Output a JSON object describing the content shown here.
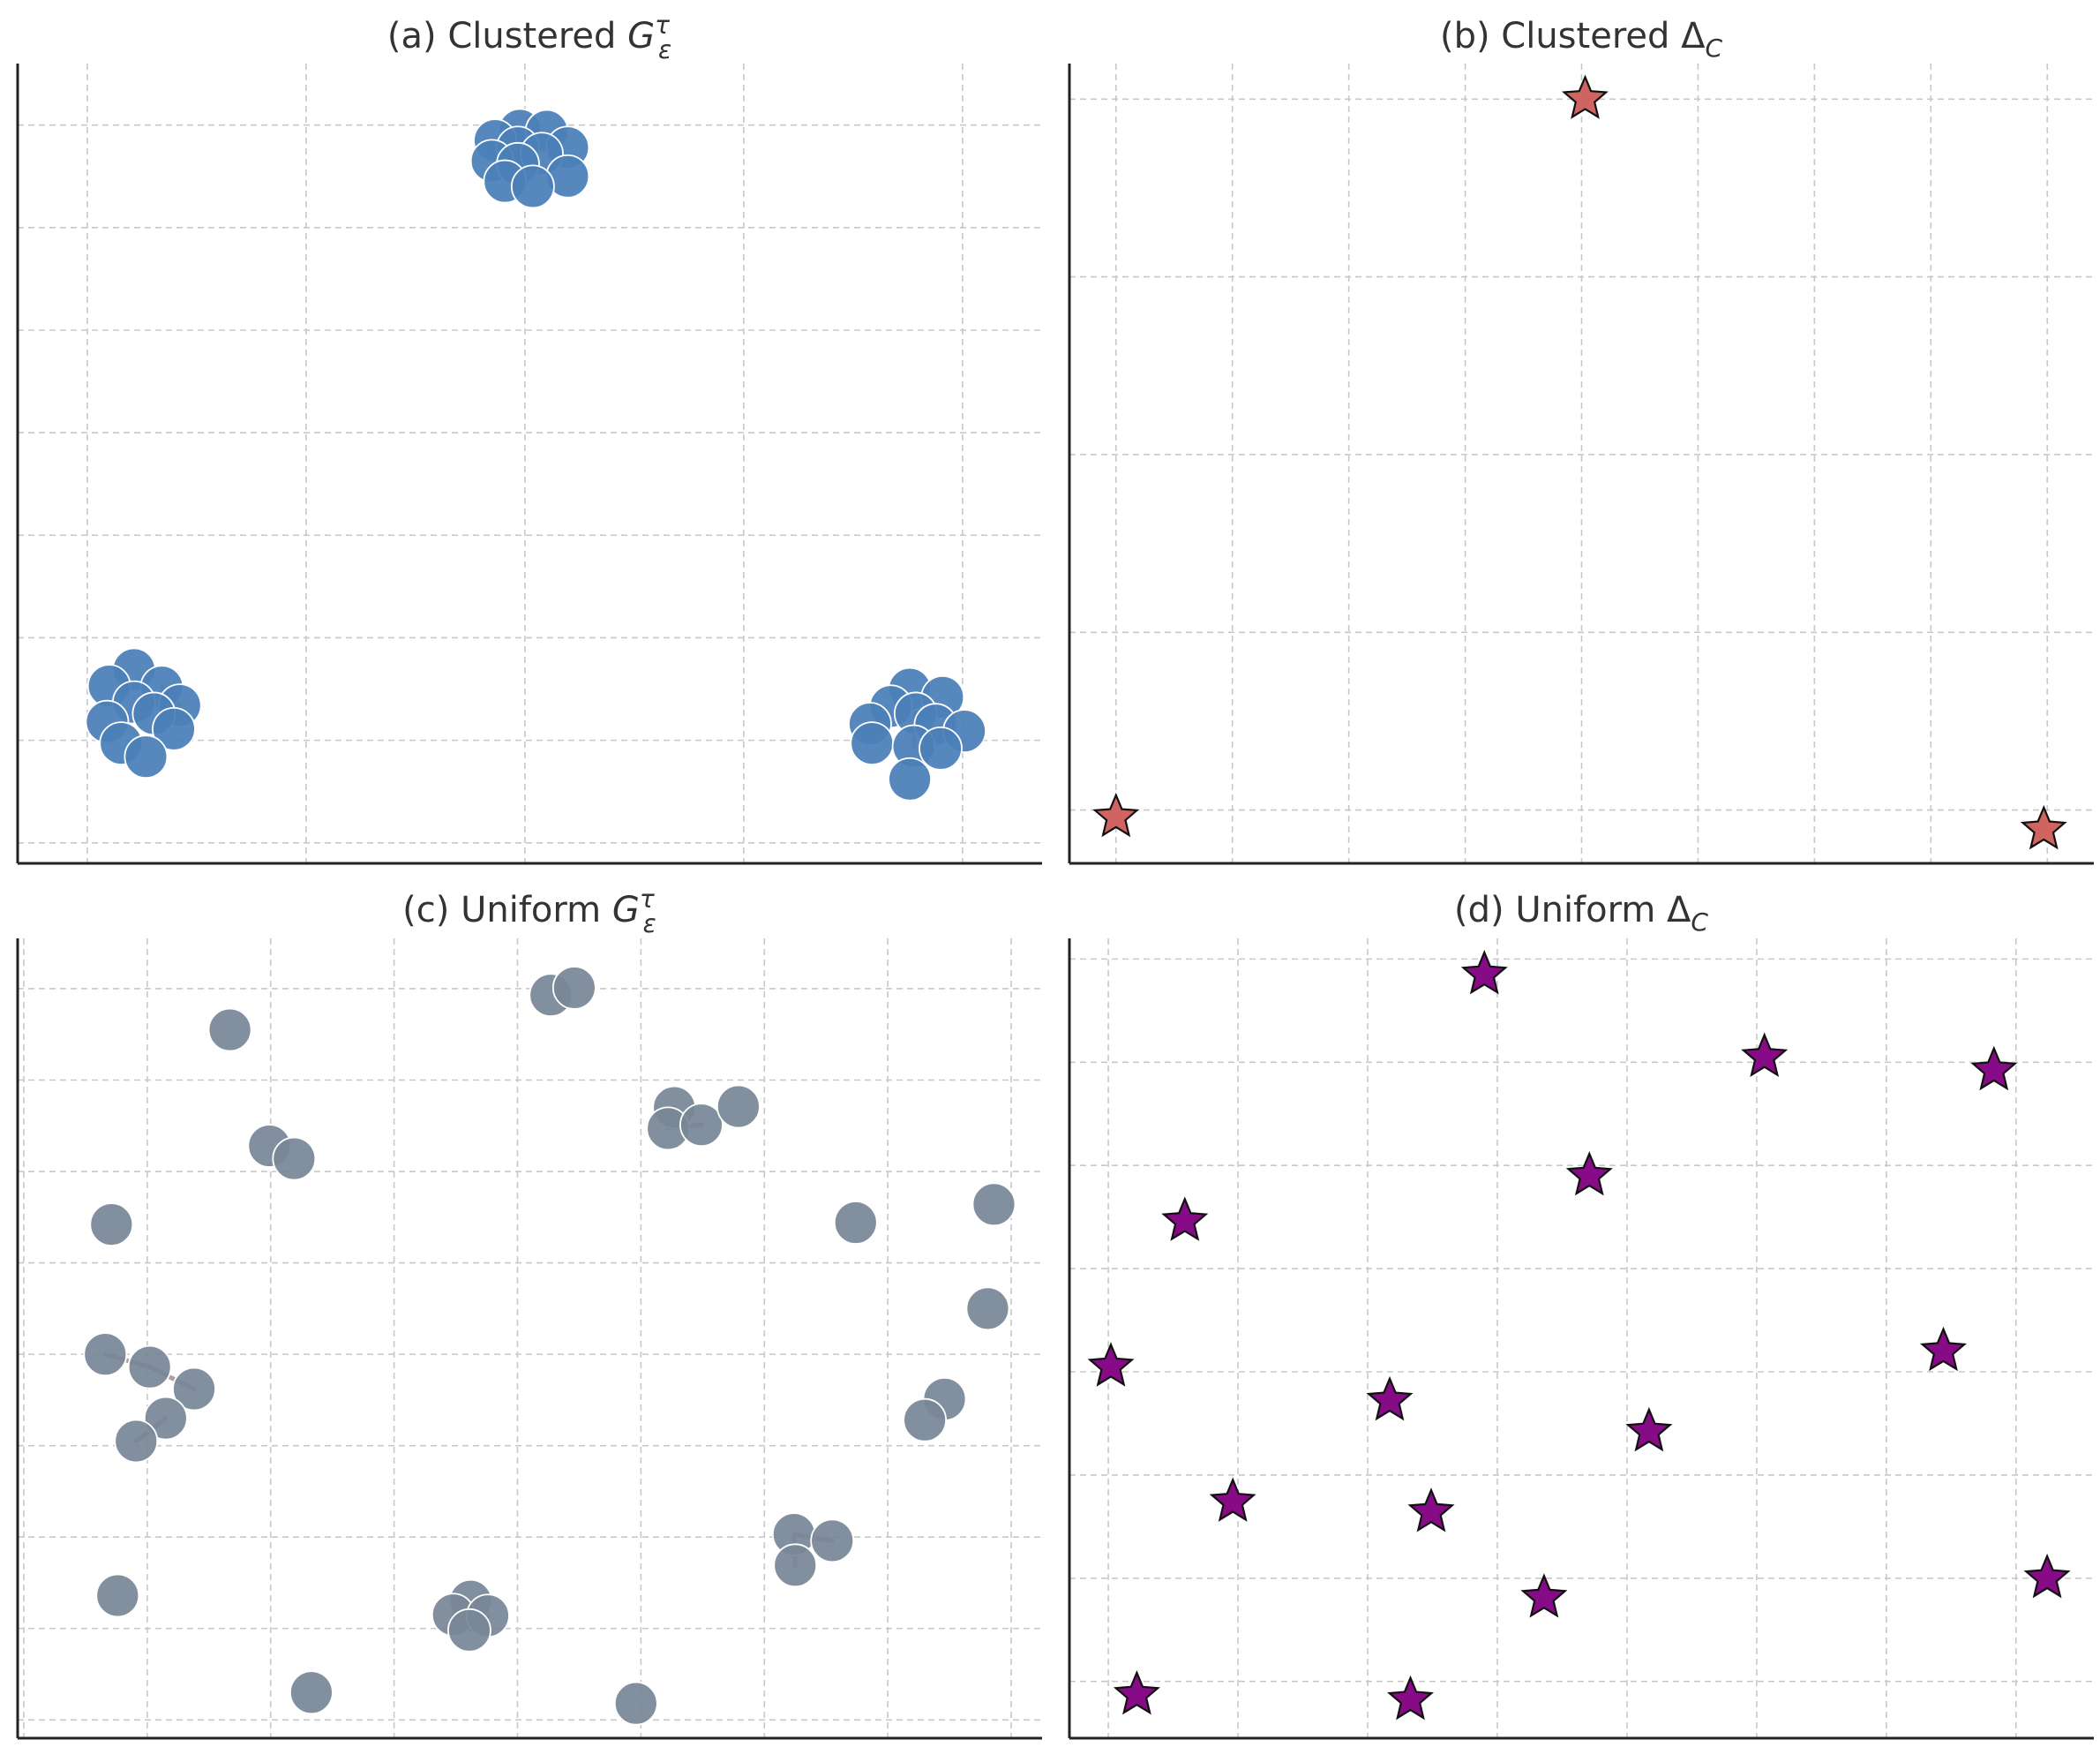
{
  "colors": {
    "clustered_nodes": "#4a7fb8",
    "uniform_nodes": "#798797",
    "clustered_stars": "#d06460",
    "uniform_stars": "#870a86",
    "edge": "#9e8e99",
    "grid": "#c8c8c8"
  },
  "chart_data": [
    {
      "id": "a",
      "type": "scatter",
      "title_prefix": "(a) Clustered ",
      "title_symbol": "G",
      "title_sub": "ε",
      "title_sup": "τ",
      "marker": "circle",
      "xlim": [
        -0.4,
        9.9
      ],
      "ylim": [
        -0.2,
        7.6
      ],
      "xgrid": [
        0.3,
        2.5,
        4.7,
        6.9,
        9.1
      ],
      "ygrid": [
        0,
        1,
        2,
        3,
        4,
        5,
        6,
        7
      ],
      "points": [
        {
          "x": 4.65,
          "y": 6.95
        },
        {
          "x": 4.92,
          "y": 6.94
        },
        {
          "x": 4.4,
          "y": 6.85
        },
        {
          "x": 5.13,
          "y": 6.78
        },
        {
          "x": 4.63,
          "y": 6.78
        },
        {
          "x": 4.87,
          "y": 6.72
        },
        {
          "x": 4.37,
          "y": 6.65
        },
        {
          "x": 4.63,
          "y": 6.62
        },
        {
          "x": 5.13,
          "y": 6.5
        },
        {
          "x": 4.5,
          "y": 6.45
        },
        {
          "x": 4.78,
          "y": 6.4
        },
        {
          "x": 0.77,
          "y": 1.69
        },
        {
          "x": 0.52,
          "y": 1.53
        },
        {
          "x": 1.05,
          "y": 1.52
        },
        {
          "x": 0.77,
          "y": 1.37
        },
        {
          "x": 1.23,
          "y": 1.34
        },
        {
          "x": 0.97,
          "y": 1.26
        },
        {
          "x": 0.5,
          "y": 1.18
        },
        {
          "x": 1.17,
          "y": 1.11
        },
        {
          "x": 0.64,
          "y": 0.97
        },
        {
          "x": 0.89,
          "y": 0.84
        },
        {
          "x": 8.57,
          "y": 1.5
        },
        {
          "x": 8.9,
          "y": 1.42
        },
        {
          "x": 8.38,
          "y": 1.33
        },
        {
          "x": 8.63,
          "y": 1.26
        },
        {
          "x": 8.17,
          "y": 1.16
        },
        {
          "x": 8.83,
          "y": 1.15
        },
        {
          "x": 9.12,
          "y": 1.09
        },
        {
          "x": 8.19,
          "y": 0.97
        },
        {
          "x": 8.61,
          "y": 0.94
        },
        {
          "x": 8.88,
          "y": 0.92
        },
        {
          "x": 8.57,
          "y": 0.62
        }
      ],
      "edges": [
        [
          0,
          4
        ],
        [
          4,
          7
        ],
        [
          13,
          15
        ],
        [
          24,
          29
        ]
      ]
    },
    {
      "id": "b",
      "type": "scatter",
      "title_prefix": "(b) Clustered ",
      "title_symbol": "Δ",
      "title_sub": "C",
      "title_sup": "",
      "marker": "star",
      "xlim": [
        -0.4,
        8.4
      ],
      "ylim": [
        -0.3,
        4.2
      ],
      "xgrid": [
        0.0,
        1.0,
        2.0,
        3.0,
        4.0,
        5.0,
        6.0,
        7.0,
        8.0
      ],
      "ygrid": [
        0,
        1,
        2,
        3,
        4
      ],
      "points": [
        {
          "x": 4.03,
          "y": 4.0
        },
        {
          "x": 0.0,
          "y": -0.04
        },
        {
          "x": 7.97,
          "y": -0.11
        }
      ],
      "edges": []
    },
    {
      "id": "c",
      "type": "scatter",
      "title_prefix": "(c) Uniform ",
      "title_symbol": "G",
      "title_sub": "ε",
      "title_sup": "τ",
      "marker": "circle",
      "xlim": [
        -0.05,
        8.25
      ],
      "ylim": [
        -0.2,
        8.55
      ],
      "xgrid": [
        0,
        1,
        2,
        3,
        4,
        5,
        6,
        7,
        8
      ],
      "ygrid": [
        0,
        1,
        2,
        3,
        4,
        5,
        6,
        7,
        8
      ],
      "points": [
        {
          "x": 4.27,
          "y": 7.93
        },
        {
          "x": 4.46,
          "y": 8.01
        },
        {
          "x": 1.67,
          "y": 7.55
        },
        {
          "x": 5.27,
          "y": 6.7
        },
        {
          "x": 5.22,
          "y": 6.47
        },
        {
          "x": 5.49,
          "y": 6.51
        },
        {
          "x": 5.79,
          "y": 6.71
        },
        {
          "x": 1.99,
          "y": 6.28
        },
        {
          "x": 2.19,
          "y": 6.14
        },
        {
          "x": 0.71,
          "y": 5.42
        },
        {
          "x": 6.74,
          "y": 5.44
        },
        {
          "x": 7.86,
          "y": 5.64
        },
        {
          "x": 7.81,
          "y": 4.5
        },
        {
          "x": 0.66,
          "y": 4.0
        },
        {
          "x": 1.02,
          "y": 3.86
        },
        {
          "x": 1.38,
          "y": 3.62
        },
        {
          "x": 1.15,
          "y": 3.3
        },
        {
          "x": 0.91,
          "y": 3.05
        },
        {
          "x": 7.46,
          "y": 3.51
        },
        {
          "x": 7.3,
          "y": 3.28
        },
        {
          "x": 6.24,
          "y": 2.03
        },
        {
          "x": 6.55,
          "y": 1.96
        },
        {
          "x": 6.25,
          "y": 1.69
        },
        {
          "x": 0.76,
          "y": 1.36
        },
        {
          "x": 3.62,
          "y": 1.3
        },
        {
          "x": 3.48,
          "y": 1.15
        },
        {
          "x": 3.76,
          "y": 1.14
        },
        {
          "x": 3.61,
          "y": 0.98
        },
        {
          "x": 2.33,
          "y": 0.3
        },
        {
          "x": 4.96,
          "y": 0.18
        }
      ],
      "edges": [
        [
          13,
          14
        ],
        [
          14,
          15
        ],
        [
          16,
          17
        ],
        [
          20,
          21
        ],
        [
          20,
          22
        ],
        [
          3,
          4
        ],
        [
          4,
          5
        ],
        [
          24,
          27
        ],
        [
          25,
          26
        ]
      ]
    },
    {
      "id": "d",
      "type": "scatter",
      "title_prefix": "(d) Uniform ",
      "title_symbol": "Δ",
      "title_sub": "C",
      "title_sup": "",
      "marker": "star",
      "xlim": [
        -0.3,
        7.6
      ],
      "ylim": [
        -0.55,
        7.2
      ],
      "xgrid": [
        0,
        1,
        2,
        3,
        4,
        5,
        6,
        7
      ],
      "ygrid": [
        0,
        1,
        2,
        3,
        4,
        5,
        6,
        7
      ],
      "points": [
        {
          "x": 2.9,
          "y": 6.85
        },
        {
          "x": 5.06,
          "y": 6.05
        },
        {
          "x": 6.83,
          "y": 5.92
        },
        {
          "x": 3.71,
          "y": 4.9
        },
        {
          "x": 0.59,
          "y": 4.46
        },
        {
          "x": 6.44,
          "y": 3.2
        },
        {
          "x": 0.02,
          "y": 3.05
        },
        {
          "x": 2.17,
          "y": 2.72
        },
        {
          "x": 4.17,
          "y": 2.42
        },
        {
          "x": 0.96,
          "y": 1.74
        },
        {
          "x": 2.49,
          "y": 1.64
        },
        {
          "x": 7.24,
          "y": 1.0
        },
        {
          "x": 3.36,
          "y": 0.81
        },
        {
          "x": 0.22,
          "y": -0.13
        },
        {
          "x": 2.33,
          "y": -0.18
        }
      ],
      "edges": []
    }
  ]
}
